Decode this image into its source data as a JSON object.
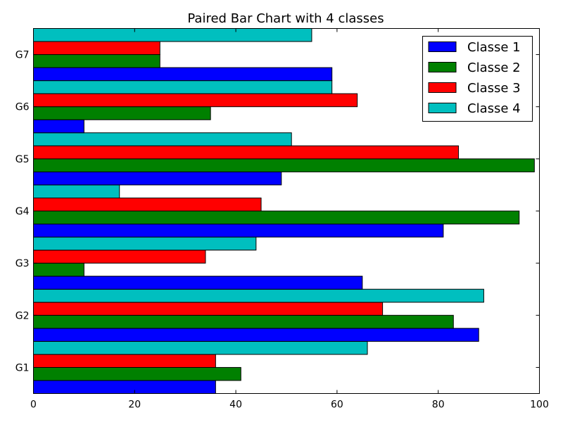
{
  "chart_data": {
    "type": "bar",
    "orientation": "horizontal",
    "title": "Paired Bar Chart with 4 classes",
    "xlabel": "",
    "ylabel": "",
    "categories": [
      "G1",
      "G2",
      "G3",
      "G4",
      "G5",
      "G6",
      "G7"
    ],
    "xlim": [
      0,
      100
    ],
    "x_ticks": [
      "0",
      "20",
      "40",
      "60",
      "80",
      "100"
    ],
    "legend_position": "top-right",
    "grid": false,
    "series": [
      {
        "name": "Classe 1",
        "color": "#0000ff",
        "values": [
          36,
          88,
          65,
          81,
          49,
          10,
          59
        ]
      },
      {
        "name": "Classe 2",
        "color": "#008000",
        "values": [
          41,
          83,
          10,
          96,
          99,
          35,
          25
        ]
      },
      {
        "name": "Classe 3",
        "color": "#ff0000",
        "values": [
          36,
          69,
          34,
          45,
          84,
          64,
          25
        ]
      },
      {
        "name": "Classe 4",
        "color": "#00bfbf",
        "values": [
          66,
          89,
          44,
          17,
          51,
          59,
          55
        ]
      }
    ]
  }
}
